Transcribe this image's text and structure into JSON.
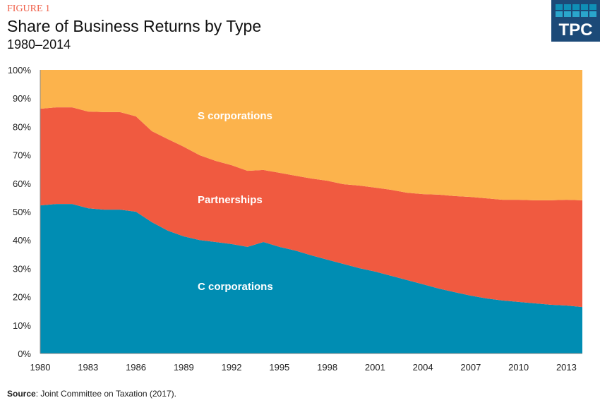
{
  "header": {
    "figure_label": "FIGURE 1",
    "title": "Share of Business Returns by Type",
    "subtitle": "1980–2014"
  },
  "logo": {
    "text": "TPC"
  },
  "source": {
    "label": "Source",
    "text": ": Joint Committee on Taxation (2017)."
  },
  "chart_data": {
    "type": "area",
    "stacked": true,
    "title": "Share of Business Returns by Type",
    "xlabel": "",
    "ylabel": "",
    "x": [
      1980,
      1981,
      1982,
      1983,
      1984,
      1985,
      1986,
      1987,
      1988,
      1989,
      1990,
      1991,
      1992,
      1993,
      1994,
      1995,
      1996,
      1997,
      1998,
      1999,
      2000,
      2001,
      2002,
      2003,
      2004,
      2005,
      2006,
      2007,
      2008,
      2009,
      2010,
      2011,
      2012,
      2013,
      2014
    ],
    "xlim": [
      1980,
      2014
    ],
    "ylim": [
      0,
      100
    ],
    "x_ticks": [
      "1980",
      "1983",
      "1986",
      "1989",
      "1992",
      "1995",
      "1998",
      "2001",
      "2004",
      "2007",
      "2010",
      "2013"
    ],
    "y_ticks": [
      "0%",
      "10%",
      "20%",
      "30%",
      "40%",
      "50%",
      "60%",
      "70%",
      "80%",
      "90%",
      "100%"
    ],
    "series": [
      {
        "name": "C corporations",
        "color": "#008db3",
        "values": [
          52.2,
          52.7,
          52.7,
          51.2,
          50.7,
          50.7,
          50.0,
          46.3,
          43.3,
          41.3,
          40.0,
          39.3,
          38.6,
          37.6,
          39.3,
          37.6,
          36.3,
          34.6,
          33.1,
          31.6,
          30.1,
          28.9,
          27.4,
          25.9,
          24.4,
          22.9,
          21.6,
          20.4,
          19.4,
          18.7,
          18.2,
          17.7,
          17.2,
          16.9,
          16.4
        ]
      },
      {
        "name": "Partnerships",
        "color": "#f05a40",
        "values": [
          34.1,
          34.1,
          34.1,
          34.1,
          34.4,
          34.4,
          33.6,
          32.1,
          32.3,
          31.6,
          29.9,
          28.6,
          27.8,
          26.8,
          25.4,
          26.1,
          26.4,
          27.1,
          27.8,
          28.1,
          29.1,
          29.6,
          30.3,
          30.8,
          31.8,
          33.1,
          33.9,
          34.8,
          35.3,
          35.5,
          36.0,
          36.3,
          36.8,
          37.3,
          37.6
        ]
      },
      {
        "name": "S corporations",
        "color": "#fcb34c",
        "values": [
          13.7,
          13.2,
          13.2,
          14.7,
          14.9,
          14.9,
          16.4,
          21.6,
          24.4,
          27.1,
          30.1,
          32.1,
          33.6,
          35.6,
          35.3,
          36.3,
          37.3,
          38.3,
          39.1,
          40.3,
          40.8,
          41.5,
          42.3,
          43.3,
          43.8,
          44.0,
          44.5,
          44.8,
          45.3,
          45.8,
          45.8,
          46.0,
          46.0,
          45.8,
          46.0
        ]
      }
    ],
    "annotations": [
      "S corporations",
      "Partnerships",
      "C corporations"
    ],
    "grid": false
  }
}
